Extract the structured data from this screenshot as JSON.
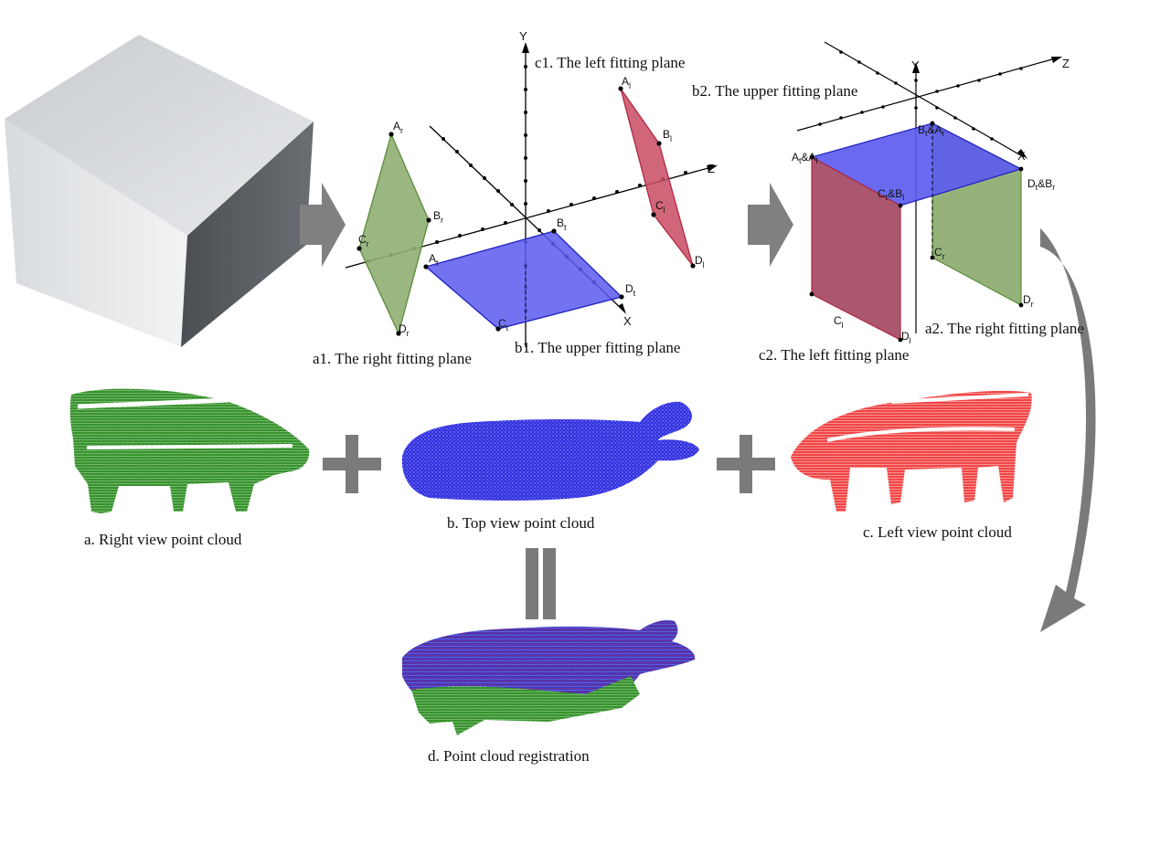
{
  "captions": {
    "a1": "a1. The right fitting plane",
    "b1": "b1. The upper fitting plane",
    "c1": "c1. The left fitting plane",
    "b2": "b2. The upper fitting plane",
    "a2": "a2. The right fitting plane",
    "c2": "c2. The left fitting plane",
    "a": "a. Right view point cloud",
    "b": "b. Top view point cloud",
    "c": "c. Left view point cloud",
    "d": "d. Point cloud registration"
  },
  "axes": {
    "x": "X",
    "y": "Y",
    "z": "Z"
  },
  "points": {
    "left": {
      "Ar": {
        "base": "A",
        "sub": "r"
      },
      "Br": {
        "base": "B",
        "sub": "r"
      },
      "Cr": {
        "base": "C",
        "sub": "r"
      },
      "Dr": {
        "base": "D",
        "sub": "r"
      },
      "At": {
        "base": "A",
        "sub": "t"
      },
      "Bt": {
        "base": "B",
        "sub": "t"
      },
      "Ct": {
        "base": "C",
        "sub": "t"
      },
      "Dt": {
        "base": "D",
        "sub": "t"
      },
      "Al": {
        "base": "A",
        "sub": "l"
      },
      "Bl": {
        "base": "B",
        "sub": "l"
      },
      "Cl": {
        "base": "C",
        "sub": "l"
      },
      "Dl": {
        "base": "D",
        "sub": "l"
      }
    },
    "right": {
      "AtAl": {
        "base": "A",
        "sub": "t",
        "mid": "&A",
        "sub2": "l"
      },
      "BtAr": {
        "base": "B",
        "sub": "t",
        "mid": "&A",
        "sub2": "r"
      },
      "CtBl": {
        "base": "C",
        "sub": "t",
        "mid": "&B",
        "sub2": "l"
      },
      "DtBr": {
        "base": "D",
        "sub": "t",
        "mid": "&B",
        "sub2": "r"
      },
      "Cr": {
        "base": "C",
        "sub": "r"
      },
      "Dr": {
        "base": "D",
        "sub": "r"
      },
      "Cl": {
        "base": "C",
        "sub": "l"
      },
      "Dl": {
        "base": "D",
        "sub": "l"
      }
    }
  },
  "colors": {
    "right_plane": "#8fae73",
    "upper_plane": "#5a5af0",
    "left_plane": "#c94b63",
    "cube_face_light": "#e3e6e8",
    "cube_face_dark": "#55595d",
    "arrow_gray": "#808080"
  }
}
